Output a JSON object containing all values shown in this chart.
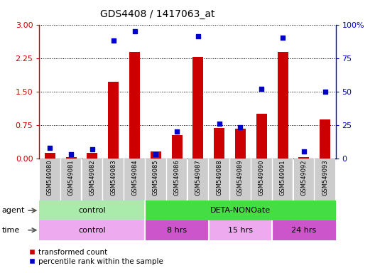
{
  "title": "GDS4408 / 1417063_at",
  "samples": [
    "GSM549080",
    "GSM549081",
    "GSM549082",
    "GSM549083",
    "GSM549084",
    "GSM549085",
    "GSM549086",
    "GSM549087",
    "GSM549088",
    "GSM549089",
    "GSM549090",
    "GSM549091",
    "GSM549092",
    "GSM549093"
  ],
  "red_values": [
    0.13,
    0.02,
    0.12,
    1.72,
    2.38,
    0.15,
    0.52,
    2.28,
    0.68,
    0.67,
    1.0,
    2.38,
    0.02,
    0.88
  ],
  "blue_values_pct": [
    8,
    3,
    7,
    88,
    95,
    3,
    20,
    91,
    26,
    23,
    52,
    90,
    5,
    50
  ],
  "red_ylim": [
    0,
    3
  ],
  "blue_ylim": [
    0,
    100
  ],
  "red_yticks": [
    0,
    0.75,
    1.5,
    2.25,
    3
  ],
  "blue_yticks": [
    0,
    25,
    50,
    75,
    100
  ],
  "blue_yticklabels": [
    "0",
    "25",
    "50",
    "75",
    "100%"
  ],
  "red_color": "#cc0000",
  "blue_color": "#0000cc",
  "agent_groups": [
    {
      "label": "control",
      "start": 0,
      "end": 5,
      "color": "#aaeaaa"
    },
    {
      "label": "DETA-NONOate",
      "start": 5,
      "end": 14,
      "color": "#44dd44"
    }
  ],
  "time_groups": [
    {
      "label": "control",
      "start": 0,
      "end": 5,
      "color": "#eeaaee"
    },
    {
      "label": "8 hrs",
      "start": 5,
      "end": 8,
      "color": "#cc55cc"
    },
    {
      "label": "15 hrs",
      "start": 8,
      "end": 11,
      "color": "#eeaaee"
    },
    {
      "label": "24 hrs",
      "start": 11,
      "end": 14,
      "color": "#cc55cc"
    }
  ],
  "legend_red": "transformed count",
  "legend_blue": "percentile rank within the sample",
  "tick_bg_color": "#cccccc",
  "title_fontsize": 10,
  "label_fontsize": 7
}
